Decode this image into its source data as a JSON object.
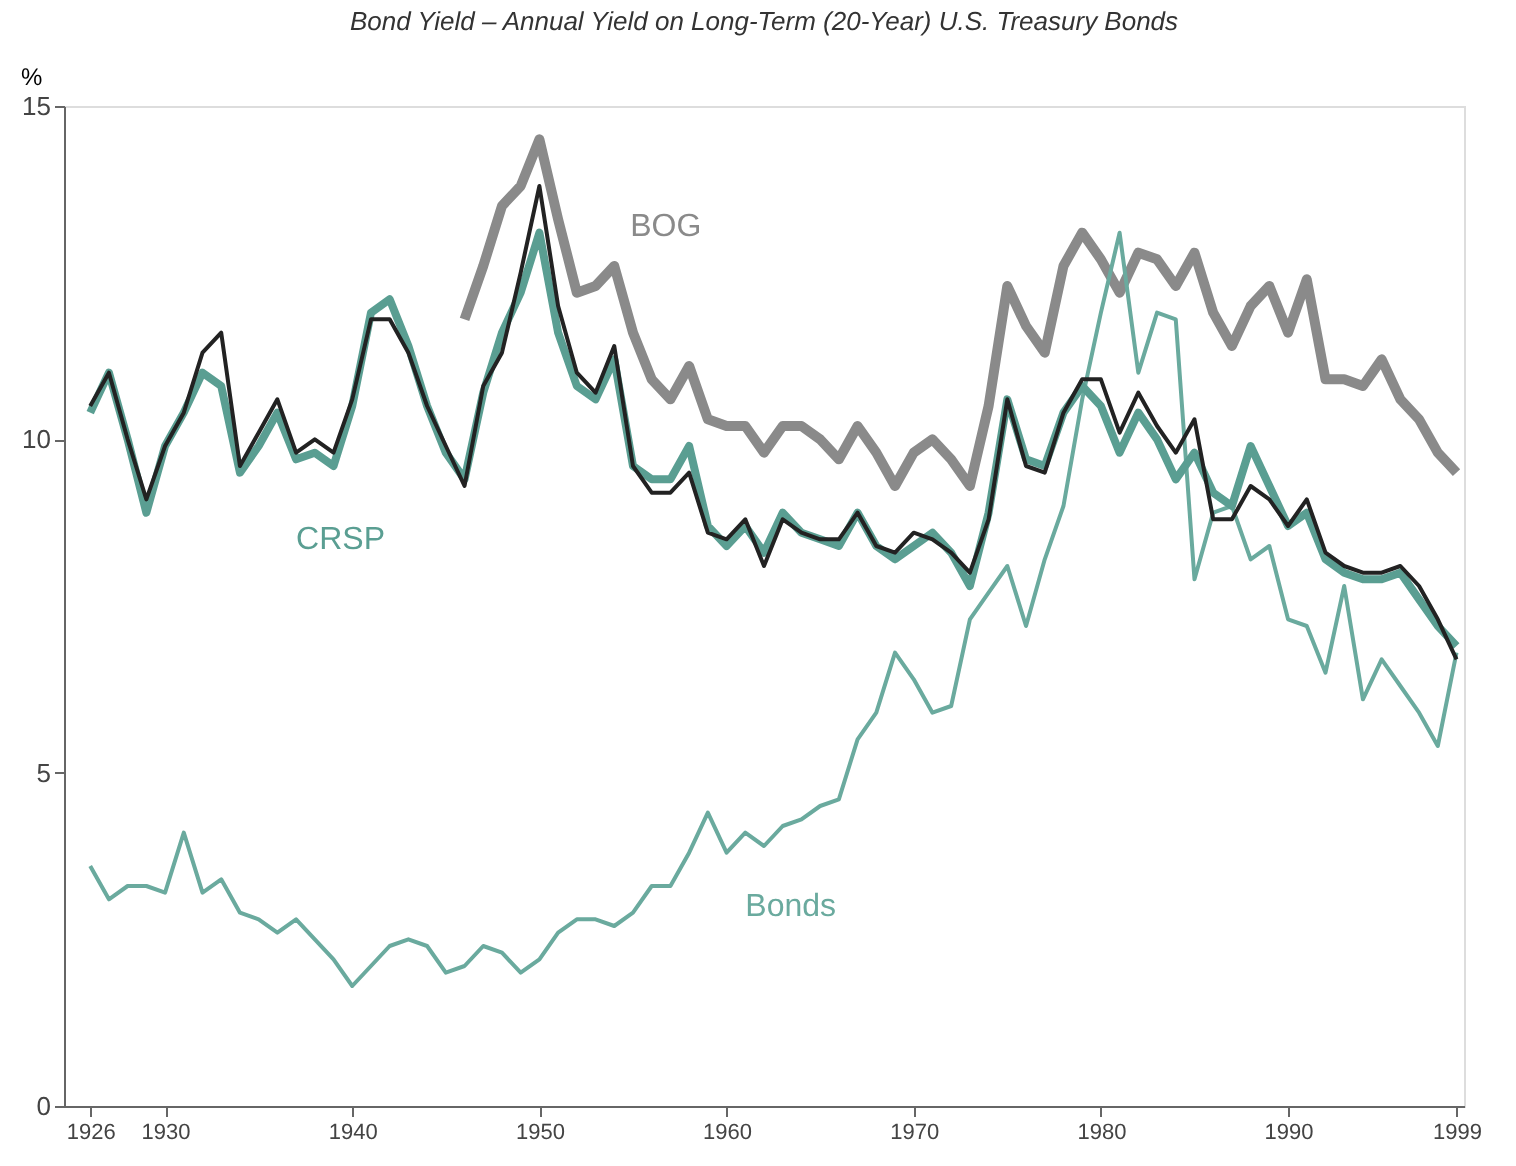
{
  "chart_data": {
    "type": "line",
    "title": "Bond Yield – Annual Yield on Long-Term (20-Year) U.S. Treasury Bonds",
    "ylabel": "%",
    "x": [
      1926,
      1927,
      1928,
      1929,
      1930,
      1931,
      1932,
      1933,
      1934,
      1935,
      1936,
      1937,
      1938,
      1939,
      1940,
      1941,
      1942,
      1943,
      1944,
      1945,
      1946,
      1947,
      1948,
      1949,
      1950,
      1951,
      1952,
      1953,
      1954,
      1955,
      1956,
      1957,
      1958,
      1959,
      1960,
      1961,
      1962,
      1963,
      1964,
      1965,
      1966,
      1967,
      1968,
      1969,
      1970,
      1971,
      1972,
      1973,
      1974,
      1975,
      1976,
      1977,
      1978,
      1979,
      1980,
      1981,
      1982,
      1983,
      1984,
      1985,
      1986,
      1987,
      1988,
      1989,
      1990,
      1991,
      1992,
      1993,
      1994,
      1995,
      1996,
      1997,
      1998,
      1999
    ],
    "series": [
      {
        "name": "CRSP",
        "color": "#5a9e92",
        "values": [
          10.4,
          11.0,
          10.0,
          8.9,
          9.9,
          10.4,
          11.0,
          10.8,
          9.5,
          9.9,
          10.4,
          9.7,
          9.8,
          9.6,
          10.5,
          11.9,
          12.1,
          11.4,
          10.5,
          9.8,
          9.4,
          10.7,
          11.6,
          12.2,
          13.1,
          11.6,
          10.8,
          10.6,
          11.2,
          9.6,
          9.4,
          9.4,
          9.9,
          8.7,
          8.4,
          8.7,
          8.3,
          8.9,
          8.6,
          8.5,
          8.4,
          8.9,
          8.4,
          8.2,
          8.4,
          8.6,
          8.3,
          7.8,
          8.9,
          10.6,
          9.7,
          9.6,
          10.4,
          10.8,
          10.5,
          9.8,
          10.4,
          10.0,
          9.4,
          9.8,
          9.2,
          9.0,
          9.9,
          9.3,
          8.7,
          8.9,
          8.2,
          8.0,
          7.9,
          7.9,
          8.0,
          7.6,
          7.2,
          6.9
        ]
      },
      {
        "color": "#222222",
        "values": [
          10.5,
          11.0,
          10.0,
          9.1,
          9.9,
          10.4,
          11.3,
          11.6,
          9.6,
          10.1,
          10.6,
          9.8,
          10.0,
          9.8,
          10.6,
          11.8,
          11.8,
          11.3,
          10.5,
          9.9,
          9.3,
          10.8,
          11.3,
          12.5,
          13.8,
          12.0,
          11.0,
          10.7,
          11.4,
          9.6,
          9.2,
          9.2,
          9.5,
          8.6,
          8.5,
          8.8,
          8.1,
          8.8,
          8.6,
          8.5,
          8.5,
          8.9,
          8.4,
          8.3,
          8.6,
          8.5,
          8.3,
          8.0,
          8.8,
          10.6,
          9.6,
          9.5,
          10.4,
          10.9,
          10.9,
          10.1,
          10.7,
          10.2,
          9.8,
          10.3,
          8.8,
          8.8,
          9.3,
          9.1,
          8.7,
          9.1,
          8.3,
          8.1,
          8.0,
          8.0,
          8.1,
          7.8,
          7.3,
          6.7
        ]
      },
      {
        "name": "BOG",
        "color": "#8a8a8a",
        "values": [
          null,
          null,
          null,
          null,
          null,
          null,
          null,
          null,
          null,
          null,
          null,
          null,
          null,
          null,
          null,
          null,
          null,
          null,
          null,
          null,
          11.8,
          12.6,
          13.5,
          13.8,
          14.5,
          13.3,
          12.2,
          12.3,
          12.6,
          11.6,
          10.9,
          10.6,
          11.1,
          10.3,
          10.2,
          10.2,
          9.8,
          10.2,
          10.2,
          10.0,
          9.7,
          10.2,
          9.8,
          9.3,
          9.8,
          10.0,
          9.7,
          9.3,
          10.5,
          12.3,
          11.7,
          11.3,
          12.6,
          13.1,
          12.7,
          12.2,
          12.8,
          12.7,
          12.3,
          12.8,
          11.9,
          11.4,
          12.0,
          12.3,
          11.6,
          12.4,
          10.9,
          10.9,
          10.8,
          11.2,
          10.6,
          10.3,
          9.8,
          9.5
        ]
      },
      {
        "name": "Bonds",
        "color": "#6aaa9e",
        "values": [
          3.6,
          3.1,
          3.3,
          3.3,
          3.2,
          4.1,
          3.2,
          3.4,
          2.9,
          2.8,
          2.6,
          2.8,
          2.5,
          2.2,
          1.8,
          2.1,
          2.4,
          2.5,
          2.4,
          2.0,
          2.1,
          2.4,
          2.3,
          2.0,
          2.2,
          2.6,
          2.8,
          2.8,
          2.7,
          2.9,
          3.3,
          3.3,
          3.8,
          4.4,
          3.8,
          4.1,
          3.9,
          4.2,
          4.3,
          4.5,
          4.6,
          5.5,
          5.9,
          6.8,
          6.4,
          5.9,
          6.0,
          7.3,
          7.7,
          8.1,
          7.2,
          8.2,
          9.0,
          10.6,
          11.9,
          13.1,
          11.0,
          11.9,
          11.8,
          7.9,
          8.9,
          9.0,
          8.2,
          8.4,
          7.3,
          7.2,
          6.5,
          7.8,
          6.1,
          6.7,
          6.3,
          5.9,
          5.4,
          6.8
        ]
      }
    ],
    "xlim": [
      1924.6,
      1999.4
    ],
    "xticks": [
      1926,
      1930,
      1940,
      1950,
      1960,
      1970,
      1980,
      1990,
      1999
    ],
    "ylim": [
      0,
      15
    ],
    "yticks": [
      0,
      5,
      10,
      15
    ],
    "grid": false,
    "line_style": "solid",
    "marker": "none"
  }
}
